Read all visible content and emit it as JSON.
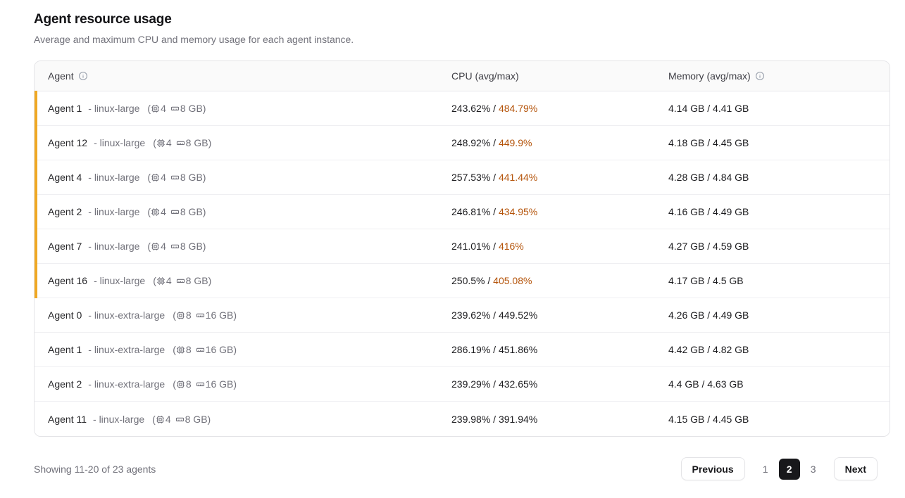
{
  "page": {
    "title": "Agent resource usage",
    "subtitle": "Average and maximum CPU and memory usage for each agent instance."
  },
  "table": {
    "columns": {
      "agent": "Agent",
      "cpu": "CPU (avg/max)",
      "memory": "Memory (avg/max)"
    },
    "format": {
      "type_prefix": "- ",
      "paren_open": "(",
      "paren_close": ")",
      "value_sep": " / "
    },
    "rows": [
      {
        "name": "Agent 1",
        "type": "linux-large",
        "cpus": "4",
        "ram": "8 GB",
        "cpu_avg": "243.62%",
        "cpu_max": "484.79%",
        "mem_avg": "4.14 GB",
        "mem_max": "4.41 GB",
        "highlight": true
      },
      {
        "name": "Agent 12",
        "type": "linux-large",
        "cpus": "4",
        "ram": "8 GB",
        "cpu_avg": "248.92%",
        "cpu_max": "449.9%",
        "mem_avg": "4.18 GB",
        "mem_max": "4.45 GB",
        "highlight": true
      },
      {
        "name": "Agent 4",
        "type": "linux-large",
        "cpus": "4",
        "ram": "8 GB",
        "cpu_avg": "257.53%",
        "cpu_max": "441.44%",
        "mem_avg": "4.28 GB",
        "mem_max": "4.84 GB",
        "highlight": true
      },
      {
        "name": "Agent 2",
        "type": "linux-large",
        "cpus": "4",
        "ram": "8 GB",
        "cpu_avg": "246.81%",
        "cpu_max": "434.95%",
        "mem_avg": "4.16 GB",
        "mem_max": "4.49 GB",
        "highlight": true
      },
      {
        "name": "Agent 7",
        "type": "linux-large",
        "cpus": "4",
        "ram": "8 GB",
        "cpu_avg": "241.01%",
        "cpu_max": "416%",
        "mem_avg": "4.27 GB",
        "mem_max": "4.59 GB",
        "highlight": true
      },
      {
        "name": "Agent 16",
        "type": "linux-large",
        "cpus": "4",
        "ram": "8 GB",
        "cpu_avg": "250.5%",
        "cpu_max": "405.08%",
        "mem_avg": "4.17 GB",
        "mem_max": "4.5 GB",
        "highlight": true
      },
      {
        "name": "Agent 0",
        "type": "linux-extra-large",
        "cpus": "8",
        "ram": "16 GB",
        "cpu_avg": "239.62%",
        "cpu_max": "449.52%",
        "mem_avg": "4.26 GB",
        "mem_max": "4.49 GB",
        "highlight": false
      },
      {
        "name": "Agent 1",
        "type": "linux-extra-large",
        "cpus": "8",
        "ram": "16 GB",
        "cpu_avg": "286.19%",
        "cpu_max": "451.86%",
        "mem_avg": "4.42 GB",
        "mem_max": "4.82 GB",
        "highlight": false
      },
      {
        "name": "Agent 2",
        "type": "linux-extra-large",
        "cpus": "8",
        "ram": "16 GB",
        "cpu_avg": "239.29%",
        "cpu_max": "432.65%",
        "mem_avg": "4.4 GB",
        "mem_max": "4.63 GB",
        "highlight": false
      },
      {
        "name": "Agent 11",
        "type": "linux-large",
        "cpus": "4",
        "ram": "8 GB",
        "cpu_avg": "239.98%",
        "cpu_max": "391.94%",
        "mem_avg": "4.15 GB",
        "mem_max": "4.45 GB",
        "highlight": false
      }
    ]
  },
  "footer": {
    "summary": "Showing 11-20 of 23 agents",
    "pagination": {
      "previous_label": "Previous",
      "next_label": "Next",
      "pages": [
        "1",
        "2",
        "3"
      ],
      "active_page": "2"
    }
  },
  "colors": {
    "highlight_stripe": "#f0a823",
    "cpu_max_warning_text": "#b45309",
    "active_page_background": "#18181b"
  }
}
